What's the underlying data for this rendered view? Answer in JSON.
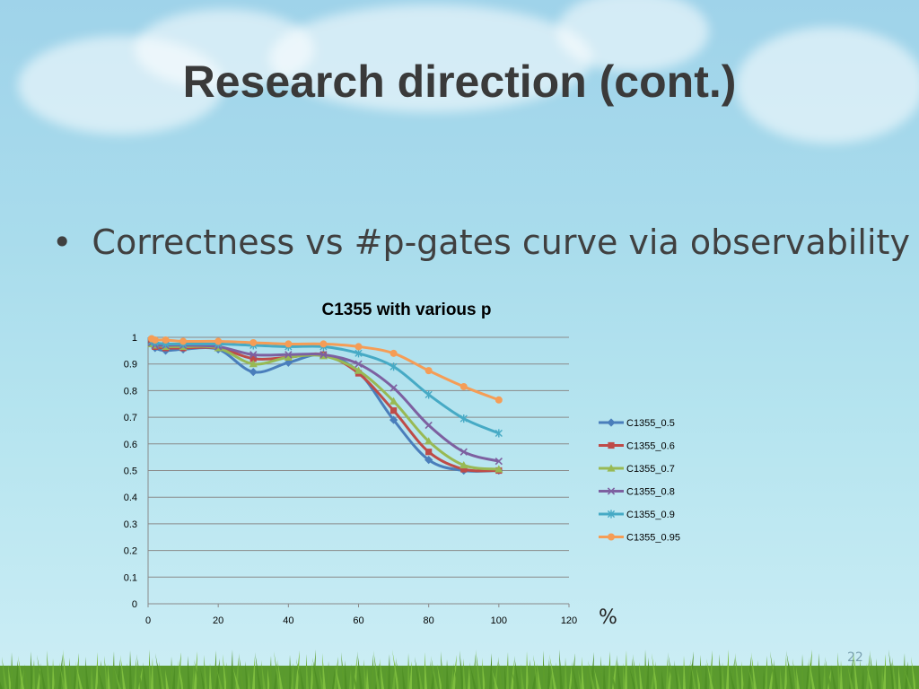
{
  "slide": {
    "title": "Research direction (cont.)",
    "bullet": "Correctness vs #p-gates curve via observability",
    "unit_label": "%",
    "slide_number": "22"
  },
  "chart_data": {
    "type": "line",
    "title": "C1355 with various p",
    "xlabel": "%",
    "ylabel": "",
    "xlim": [
      0,
      120
    ],
    "ylim": [
      0,
      1
    ],
    "x_ticks": [
      0,
      20,
      40,
      60,
      80,
      100,
      120
    ],
    "y_ticks": [
      0,
      0.1,
      0.2,
      0.3,
      0.4,
      0.5,
      0.6,
      0.7,
      0.8,
      0.9,
      1
    ],
    "grid": "horizontal",
    "legend_position": "right",
    "x": [
      1,
      2,
      5,
      10,
      20,
      30,
      40,
      50,
      60,
      70,
      80,
      90,
      100
    ],
    "series": [
      {
        "name": "C1355_0.5",
        "color": "#4a7ebb",
        "marker": "diamond",
        "values": [
          0.98,
          0.96,
          0.95,
          0.955,
          0.955,
          0.87,
          0.905,
          0.935,
          0.87,
          0.69,
          0.54,
          0.5,
          0.5
        ]
      },
      {
        "name": "C1355_0.6",
        "color": "#be4b48",
        "marker": "square",
        "values": [
          0.975,
          0.965,
          0.96,
          0.96,
          0.96,
          0.92,
          0.925,
          0.935,
          0.865,
          0.725,
          0.57,
          0.505,
          0.5
        ]
      },
      {
        "name": "C1355_0.7",
        "color": "#98b954",
        "marker": "triangle",
        "values": [
          0.975,
          0.97,
          0.965,
          0.965,
          0.96,
          0.9,
          0.925,
          0.93,
          0.875,
          0.76,
          0.61,
          0.52,
          0.505
        ]
      },
      {
        "name": "C1355_0.8",
        "color": "#7d60a0",
        "marker": "x",
        "values": [
          0.98,
          0.97,
          0.97,
          0.97,
          0.965,
          0.935,
          0.935,
          0.935,
          0.9,
          0.81,
          0.67,
          0.57,
          0.535
        ]
      },
      {
        "name": "C1355_0.9",
        "color": "#46aac5",
        "marker": "star",
        "values": [
          0.985,
          0.98,
          0.975,
          0.975,
          0.975,
          0.97,
          0.965,
          0.965,
          0.94,
          0.89,
          0.785,
          0.695,
          0.64
        ]
      },
      {
        "name": "C1355_0.95",
        "color": "#f59d56",
        "marker": "circle",
        "values": [
          0.995,
          0.99,
          0.99,
          0.985,
          0.985,
          0.98,
          0.975,
          0.975,
          0.965,
          0.94,
          0.875,
          0.815,
          0.765
        ]
      }
    ]
  }
}
